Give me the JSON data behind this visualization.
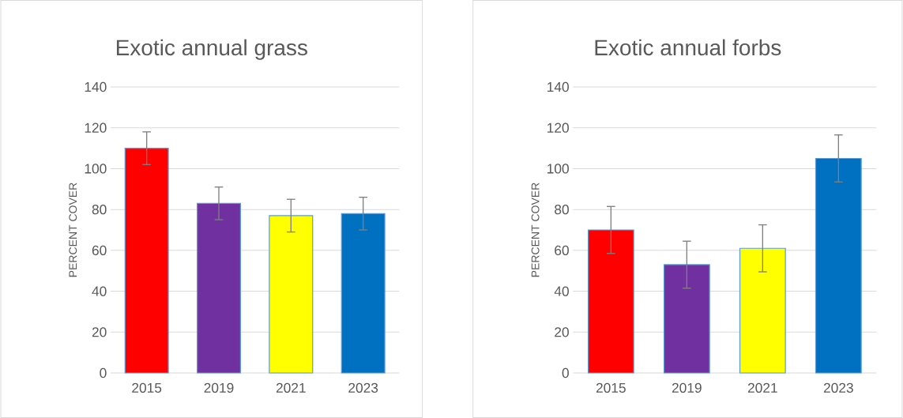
{
  "chart_data": [
    {
      "type": "bar",
      "title": "Exotic annual grass",
      "ylabel": "PERCENT COVER",
      "categories": [
        "2015",
        "2019",
        "2021",
        "2023"
      ],
      "values": [
        110,
        83,
        77,
        78
      ],
      "errors": [
        8,
        8,
        8,
        8
      ],
      "colors": [
        "#ff0000",
        "#7030a0",
        "#ffff00",
        "#0070c0"
      ],
      "ylim": [
        0,
        140
      ],
      "yticks": [
        0,
        20,
        40,
        60,
        80,
        100,
        120,
        140
      ],
      "grid": "y"
    },
    {
      "type": "bar",
      "title": "Exotic annual forbs",
      "ylabel": "PERCENT COVER",
      "categories": [
        "2015",
        "2019",
        "2021",
        "2023"
      ],
      "values": [
        70,
        53,
        61,
        105
      ],
      "errors": [
        11.5,
        11.5,
        11.5,
        11.5
      ],
      "colors": [
        "#ff0000",
        "#7030a0",
        "#ffff00",
        "#0070c0"
      ],
      "ylim": [
        0,
        140
      ],
      "yticks": [
        0,
        20,
        40,
        60,
        80,
        100,
        120,
        140
      ],
      "grid": "y"
    }
  ]
}
